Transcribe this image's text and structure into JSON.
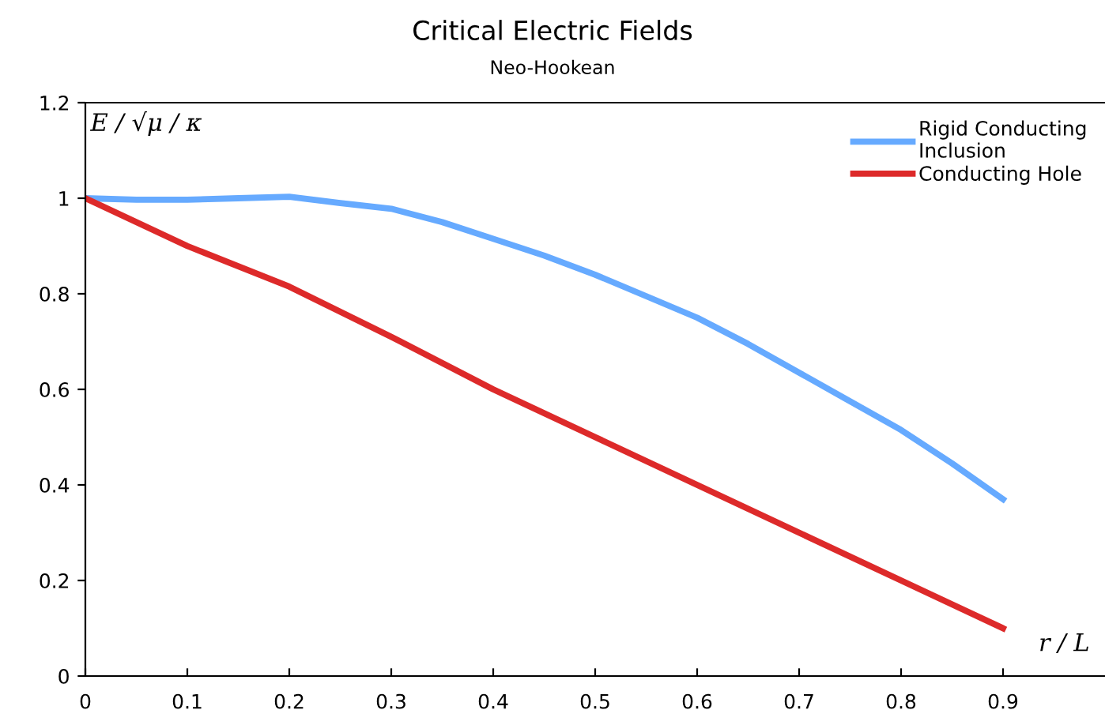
{
  "chart_data": {
    "type": "line",
    "title": "Critical Electric Fields",
    "subtitle": "Neo-Hookean",
    "xlabel": "r / L",
    "ylabel": "E / √μ / κ",
    "series": [
      {
        "name": "Rigid Conducting\nInclusion",
        "color": "#66aaff",
        "x": [
          0,
          0.05,
          0.1,
          0.15,
          0.2,
          0.25,
          0.3,
          0.35,
          0.4,
          0.45,
          0.5,
          0.55,
          0.6,
          0.65,
          0.7,
          0.75,
          0.8,
          0.85,
          0.9
        ],
        "values": [
          1.0,
          0.997,
          0.997,
          1.0,
          1.003,
          0.99,
          0.978,
          0.95,
          0.915,
          0.88,
          0.84,
          0.795,
          0.75,
          0.695,
          0.635,
          0.575,
          0.515,
          0.445,
          0.37
        ]
      },
      {
        "name": "Conducting Hole",
        "color": "#dd2a2a",
        "x": [
          0,
          0.1,
          0.2,
          0.3,
          0.4,
          0.5,
          0.6,
          0.7,
          0.8,
          0.9
        ],
        "values": [
          1.0,
          0.9,
          0.815,
          0.71,
          0.6,
          0.5,
          0.4,
          0.3,
          0.2,
          0.1
        ]
      }
    ],
    "xlim": [
      0,
      1.0
    ],
    "ylim": [
      0,
      1.2
    ],
    "xticks": [
      0,
      0.1,
      0.2,
      0.3,
      0.4,
      0.5,
      0.6,
      0.7,
      0.8,
      0.9
    ],
    "yticks": [
      0,
      0.2,
      0.4,
      0.6,
      0.8,
      1,
      1.2
    ],
    "grid": false,
    "legend": "top right",
    "marker": "none",
    "line_style": "solid"
  }
}
